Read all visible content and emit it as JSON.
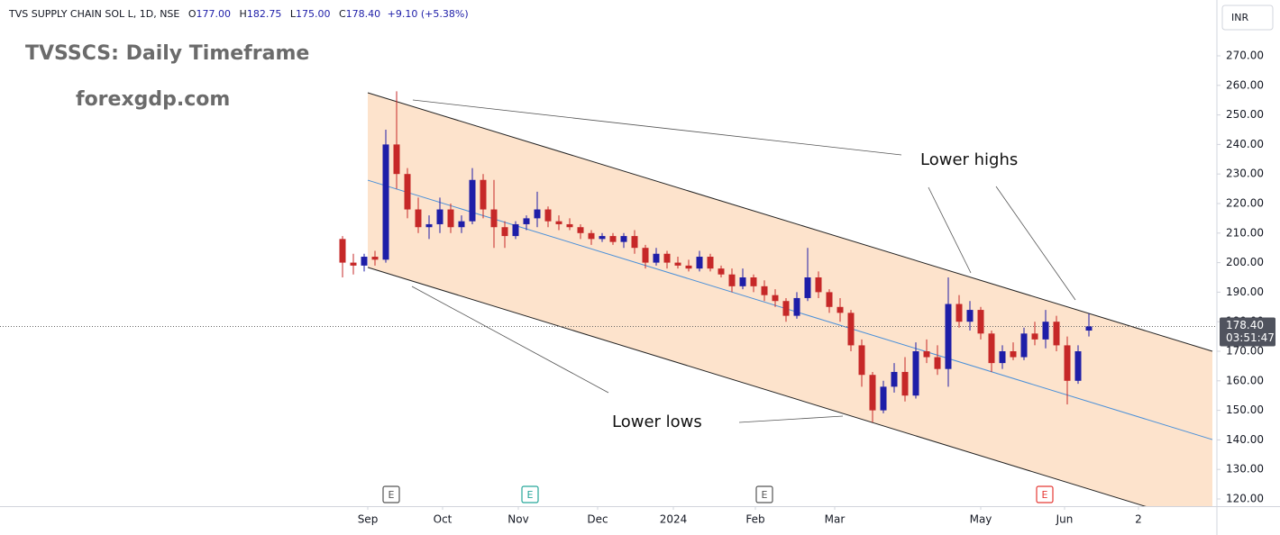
{
  "header": {
    "symbol": "TVS SUPPLY CHAIN SOL L, 1D, NSE",
    "ohlc": [
      {
        "key": "O",
        "text": "177.00"
      },
      {
        "key": "H",
        "text": "182.75"
      },
      {
        "key": "L",
        "text": "175.00"
      },
      {
        "key": "C",
        "text": "178.40"
      }
    ],
    "change": "+9.10 (+5.38%)",
    "currency": "INR"
  },
  "chart_data": {
    "type": "candlestick",
    "title": "TVSSCS: Daily Timeframe",
    "subtitle": "forexgdp.com",
    "annotations": [
      "Lower highs",
      "Lower lows"
    ],
    "up_color": "#1e1ea8",
    "down_color": "#c62828",
    "x": [
      0,
      3,
      6,
      9,
      12,
      15,
      18,
      21,
      24,
      27,
      30,
      33,
      36,
      39,
      42,
      45,
      48,
      51,
      54,
      57,
      60,
      63,
      66,
      69,
      72,
      75,
      78,
      81,
      84,
      87,
      90,
      93,
      96,
      99,
      102,
      105,
      108,
      111,
      114,
      117,
      120,
      123,
      126,
      129,
      132,
      135,
      138,
      141,
      144,
      147,
      150,
      153,
      156,
      159,
      162,
      165,
      168,
      171,
      174,
      177,
      180,
      183,
      186,
      189,
      192,
      195,
      198,
      201,
      204,
      207
    ],
    "ohlc": [
      [
        208,
        209,
        195,
        200
      ],
      [
        200,
        203,
        196,
        199
      ],
      [
        199,
        203,
        197,
        202
      ],
      [
        202,
        204,
        199,
        201
      ],
      [
        201,
        245,
        200,
        240
      ],
      [
        240,
        258,
        225,
        230
      ],
      [
        230,
        232,
        215,
        218
      ],
      [
        218,
        222,
        210,
        212
      ],
      [
        212,
        216,
        208,
        213
      ],
      [
        213,
        222,
        210,
        218
      ],
      [
        218,
        220,
        210,
        212
      ],
      [
        212,
        216,
        210,
        214
      ],
      [
        214,
        232,
        213,
        228
      ],
      [
        228,
        230,
        215,
        218
      ],
      [
        218,
        228,
        205,
        212
      ],
      [
        212,
        214,
        205,
        209
      ],
      [
        209,
        214,
        208,
        213
      ],
      [
        213,
        216,
        211,
        215
      ],
      [
        215,
        224,
        212,
        218
      ],
      [
        218,
        219,
        212,
        214
      ],
      [
        214,
        216,
        211,
        213
      ],
      [
        213,
        215,
        211,
        212
      ],
      [
        212,
        213,
        208,
        210
      ],
      [
        210,
        211,
        206,
        208
      ],
      [
        208,
        210,
        207,
        209
      ],
      [
        209,
        210,
        206,
        207
      ],
      [
        207,
        210,
        205,
        209
      ],
      [
        209,
        211,
        203,
        205
      ],
      [
        205,
        206,
        198,
        200
      ],
      [
        200,
        205,
        199,
        203
      ],
      [
        203,
        204,
        198,
        200
      ],
      [
        200,
        202,
        198,
        199
      ],
      [
        199,
        201,
        197,
        198
      ],
      [
        198,
        204,
        197,
        202
      ],
      [
        202,
        203,
        197,
        198
      ],
      [
        198,
        199,
        195,
        196
      ],
      [
        196,
        198,
        190,
        192
      ],
      [
        192,
        198,
        191,
        195
      ],
      [
        195,
        196,
        190,
        192
      ],
      [
        192,
        194,
        187,
        189
      ],
      [
        189,
        191,
        185,
        187
      ],
      [
        187,
        188,
        180,
        182
      ],
      [
        182,
        190,
        181,
        188
      ],
      [
        188,
        205,
        187,
        195
      ],
      [
        195,
        197,
        188,
        190
      ],
      [
        190,
        191,
        183,
        185
      ],
      [
        185,
        188,
        180,
        183
      ],
      [
        183,
        184,
        170,
        172
      ],
      [
        172,
        174,
        158,
        162
      ],
      [
        162,
        163,
        146,
        150
      ],
      [
        150,
        160,
        149,
        158
      ],
      [
        158,
        166,
        156,
        163
      ],
      [
        163,
        168,
        153,
        155
      ],
      [
        155,
        173,
        154,
        170
      ],
      [
        170,
        174,
        166,
        168
      ],
      [
        168,
        172,
        162,
        164
      ],
      [
        164,
        195,
        158,
        186
      ],
      [
        186,
        189,
        178,
        180
      ],
      [
        180,
        187,
        177,
        184
      ],
      [
        184,
        185,
        174,
        176
      ],
      [
        176,
        177,
        163,
        166
      ],
      [
        166,
        172,
        164,
        170
      ],
      [
        170,
        173,
        167,
        168
      ],
      [
        168,
        178,
        167,
        176
      ],
      [
        176,
        180,
        172,
        174
      ],
      [
        174,
        184,
        171,
        180
      ],
      [
        180,
        182,
        170,
        172
      ],
      [
        172,
        175,
        152,
        160
      ],
      [
        160,
        172,
        159,
        170
      ],
      [
        177,
        182.75,
        175,
        178.4
      ]
    ],
    "channel": {
      "upper": [
        [
          7,
          257.5
        ],
        [
          241.25,
          170
        ]
      ],
      "lower": [
        [
          7,
          198.4
        ],
        [
          241.25,
          110.5
        ]
      ],
      "middle": [
        [
          7,
          227.9
        ],
        [
          241.25,
          140.1
        ]
      ],
      "fill": "#fde3cc"
    },
    "current": {
      "value": 178.4,
      "label": "178.40",
      "timer": "03:51:47"
    },
    "events": [
      {
        "x": 13.5,
        "label": "E",
        "color": "#555555"
      },
      {
        "x": 52,
        "label": "E",
        "color": "#26a69a"
      },
      {
        "x": 117,
        "label": "E",
        "color": "#555555"
      },
      {
        "x": 194.75,
        "label": "E",
        "color": "#e53935"
      }
    ],
    "xlim": [
      -95,
      242.5
    ],
    "xticks": [
      {
        "value": 7,
        "label": "Sep"
      },
      {
        "value": 27.75,
        "label": "Oct"
      },
      {
        "value": 48.75,
        "label": "Nov"
      },
      {
        "value": 70.75,
        "label": "Dec"
      },
      {
        "value": 91.75,
        "label": "2024"
      },
      {
        "value": 114.5,
        "label": "Feb"
      },
      {
        "value": 136.5,
        "label": "Mar"
      },
      {
        "value": 177,
        "label": "May"
      },
      {
        "value": 200.25,
        "label": "Jun"
      },
      {
        "value": 220.75,
        "label": "2"
      }
    ],
    "ylim": [
      117.56,
      288.9
    ],
    "yticks": [
      {
        "value": 120,
        "label": "120.00"
      },
      {
        "value": 130,
        "label": "130.00"
      },
      {
        "value": 140,
        "label": "140.00"
      },
      {
        "value": 150,
        "label": "150.00"
      },
      {
        "value": 160,
        "label": "160.00"
      },
      {
        "value": 170,
        "label": "170.00"
      },
      {
        "value": 180,
        "label": "180.00"
      },
      {
        "value": 190,
        "label": "190.00"
      },
      {
        "value": 200,
        "label": "200.00"
      },
      {
        "value": 210,
        "label": "210.00"
      },
      {
        "value": 220,
        "label": "220.00"
      },
      {
        "value": 230,
        "label": "230.00"
      },
      {
        "value": 240,
        "label": "240.00"
      },
      {
        "value": 250,
        "label": "250.00"
      },
      {
        "value": 260,
        "label": "260.00"
      },
      {
        "value": 270,
        "label": "270.00"
      }
    ]
  }
}
